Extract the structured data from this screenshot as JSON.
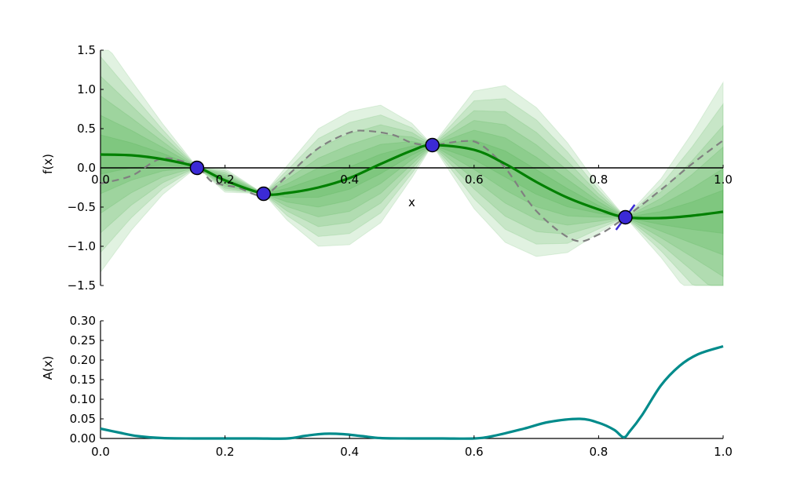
{
  "chart_data": [
    {
      "type": "line",
      "title": "",
      "xlabel": "x",
      "ylabel": "f(x)",
      "xlim": [
        0.0,
        1.0
      ],
      "ylim": [
        -1.5,
        1.5
      ],
      "xticks": [
        "0.0",
        "0.2",
        "0.4",
        "0.6",
        "0.8",
        "1.0"
      ],
      "yticks": [
        "1.5",
        "1.0",
        "0.5",
        "0.0",
        "−0.5",
        "−1.0",
        "−1.5"
      ],
      "band_color": "#2ca02c",
      "band_levels": 6,
      "series": [
        {
          "style": "solid",
          "color": "#008000",
          "x": [
            0.0,
            0.05,
            0.1,
            0.155,
            0.2,
            0.262,
            0.3,
            0.35,
            0.4,
            0.45,
            0.5,
            0.533,
            0.6,
            0.65,
            0.7,
            0.75,
            0.8,
            0.843,
            0.9,
            0.95,
            1.0
          ],
          "y": [
            0.17,
            0.16,
            0.11,
            0.01,
            -0.16,
            -0.33,
            -0.32,
            -0.25,
            -0.13,
            0.05,
            0.22,
            0.29,
            0.23,
            0.05,
            -0.18,
            -0.38,
            -0.53,
            -0.63,
            -0.64,
            -0.61,
            -0.56
          ]
        },
        {
          "style": "dashed",
          "color": "#808080",
          "x": [
            0.0,
            0.05,
            0.1,
            0.155,
            0.18,
            0.22,
            0.262,
            0.3,
            0.35,
            0.4,
            0.43,
            0.47,
            0.5,
            0.533,
            0.58,
            0.61,
            0.65,
            0.7,
            0.76,
            0.8,
            0.843,
            0.9,
            0.95,
            1.0
          ],
          "y": [
            -0.2,
            -0.1,
            0.12,
            0.01,
            -0.18,
            -0.25,
            -0.35,
            -0.1,
            0.25,
            0.45,
            0.47,
            0.42,
            0.32,
            0.29,
            0.34,
            0.3,
            0.0,
            -0.55,
            -0.92,
            -0.85,
            -0.63,
            -0.28,
            0.05,
            0.35
          ]
        }
      ],
      "uncertainty": {
        "x": [
          0.0,
          0.05,
          0.1,
          0.155,
          0.2,
          0.262,
          0.3,
          0.35,
          0.4,
          0.45,
          0.5,
          0.533,
          0.6,
          0.65,
          0.7,
          0.75,
          0.8,
          0.843,
          0.9,
          0.95,
          1.0
        ],
        "max_half_width": [
          1.5,
          0.95,
          0.45,
          0.0,
          0.15,
          0.0,
          0.35,
          0.75,
          0.85,
          0.75,
          0.35,
          0.0,
          0.75,
          1.0,
          0.95,
          0.7,
          0.3,
          0.0,
          0.5,
          1.05,
          1.65
        ]
      },
      "points": [
        {
          "x": 0.155,
          "y": 0.0,
          "dx": 0.01,
          "dy": -0.03
        },
        {
          "x": 0.262,
          "y": -0.33,
          "dx": -0.01,
          "dy": 0.0
        },
        {
          "x": 0.533,
          "y": 0.29,
          "dx": 0.0,
          "dy": 0.0
        },
        {
          "x": 0.843,
          "y": -0.63,
          "dx": 0.015,
          "dy": 0.16
        }
      ],
      "point_color": "#3b2ad6"
    },
    {
      "type": "line",
      "title": "",
      "xlabel": "",
      "ylabel": "A(x)",
      "xlim": [
        0.0,
        1.0
      ],
      "ylim": [
        0.0,
        0.3
      ],
      "xticks": [
        "0.0",
        "0.2",
        "0.4",
        "0.6",
        "0.8",
        "1.0"
      ],
      "yticks": [
        "0.30",
        "0.25",
        "0.20",
        "0.15",
        "0.10",
        "0.05",
        "0.00"
      ],
      "series": [
        {
          "style": "solid",
          "color": "#008b8b",
          "x": [
            0.0,
            0.03,
            0.06,
            0.1,
            0.15,
            0.2,
            0.25,
            0.3,
            0.33,
            0.36,
            0.39,
            0.42,
            0.45,
            0.5,
            0.55,
            0.6,
            0.63,
            0.68,
            0.72,
            0.77,
            0.8,
            0.825,
            0.84,
            0.85,
            0.87,
            0.9,
            0.93,
            0.96,
            1.0
          ],
          "y": [
            0.025,
            0.015,
            0.006,
            0.001,
            0.0,
            0.0,
            0.0,
            0.0,
            0.007,
            0.012,
            0.011,
            0.006,
            0.001,
            0.0,
            0.0,
            0.0,
            0.006,
            0.025,
            0.042,
            0.05,
            0.04,
            0.022,
            0.003,
            0.018,
            0.06,
            0.135,
            0.185,
            0.215,
            0.235
          ]
        }
      ]
    }
  ]
}
